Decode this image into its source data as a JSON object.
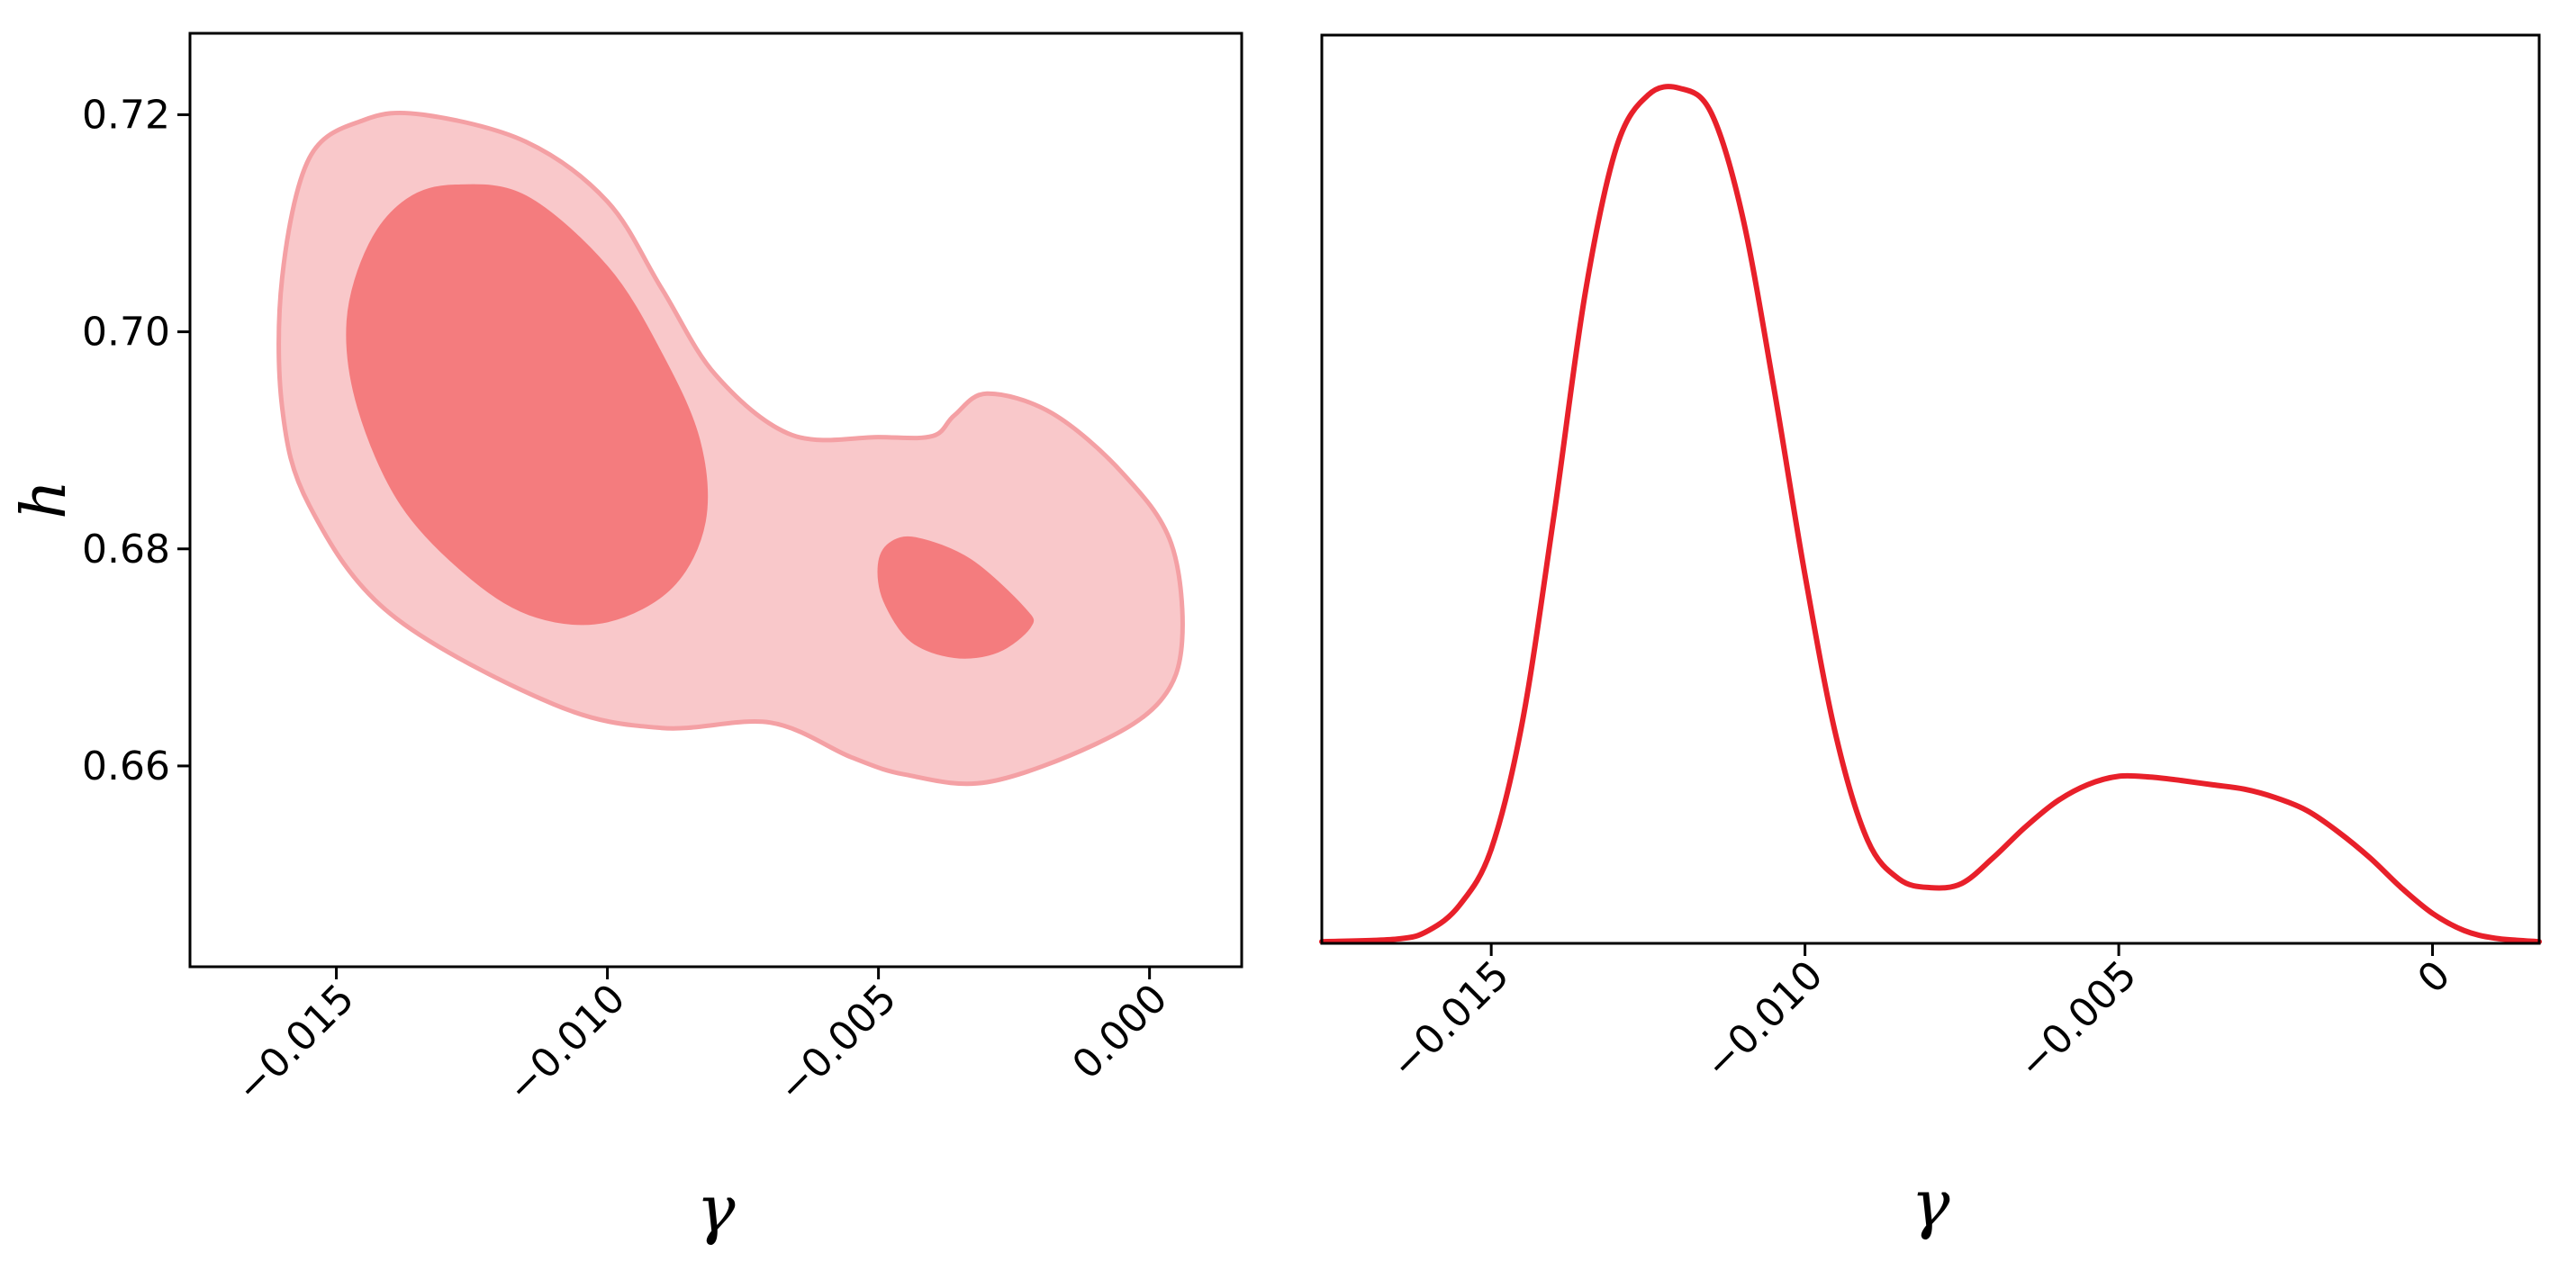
{
  "chart_data": [
    {
      "type": "contour",
      "xlabel": "γ",
      "ylabel": "h",
      "xlim": [
        -0.0177,
        0.0017
      ],
      "ylim": [
        0.6415,
        0.7275
      ],
      "xticks": [
        -0.015,
        -0.01,
        -0.005,
        0.0
      ],
      "xtick_labels": [
        "−0.015",
        "−0.010",
        "−0.005",
        "0.000"
      ],
      "yticks": [
        0.66,
        0.68,
        0.7,
        0.72
      ],
      "ytick_labels": [
        "0.66",
        "0.68",
        "0.70",
        "0.72"
      ],
      "grid": false,
      "colors": {
        "outer_fill": "#f9c8ca",
        "outer_edge": "#f4a0a4",
        "inner_fill": "#f47c7e"
      },
      "contours": [
        {
          "level": "outer",
          "points": [
            [
              -0.0134,
              0.72
            ],
            [
              -0.0115,
              0.7175
            ],
            [
              -0.01,
              0.712
            ],
            [
              -0.009,
              0.704
            ],
            [
              -0.008,
              0.696
            ],
            [
              -0.0066,
              0.6905
            ],
            [
              -0.005,
              0.6903
            ],
            [
              -0.004,
              0.6904
            ],
            [
              -0.0036,
              0.6923
            ],
            [
              -0.003,
              0.6943
            ],
            [
              -0.0018,
              0.6925
            ],
            [
              -0.0005,
              0.687
            ],
            [
              0.0004,
              0.6805
            ],
            [
              0.0006,
              0.6715
            ],
            [
              0.0002,
              0.666
            ],
            [
              -0.001,
              0.662
            ],
            [
              -0.003,
              0.6585
            ],
            [
              -0.0045,
              0.6592
            ],
            [
              -0.0055,
              0.6608
            ],
            [
              -0.007,
              0.664
            ],
            [
              -0.009,
              0.6635
            ],
            [
              -0.011,
              0.6657
            ],
            [
              -0.014,
              0.674
            ],
            [
              -0.0155,
              0.684
            ],
            [
              -0.016,
              0.693
            ],
            [
              -0.016,
              0.705
            ],
            [
              -0.0155,
              0.716
            ],
            [
              -0.0145,
              0.7195
            ]
          ]
        },
        {
          "level": "inner",
          "points": [
            [
              -0.0128,
              0.7135
            ],
            [
              -0.0115,
              0.7125
            ],
            [
              -0.01,
              0.706
            ],
            [
              -0.009,
              0.698
            ],
            [
              -0.0083,
              0.69
            ],
            [
              -0.0082,
              0.6825
            ],
            [
              -0.0088,
              0.6765
            ],
            [
              -0.01,
              0.6733
            ],
            [
              -0.0113,
              0.6737
            ],
            [
              -0.0125,
              0.6772
            ],
            [
              -0.0138,
              0.684
            ],
            [
              -0.0146,
              0.693
            ],
            [
              -0.0148,
              0.701
            ],
            [
              -0.0144,
              0.708
            ],
            [
              -0.0137,
              0.7122
            ]
          ]
        },
        {
          "level": "inner",
          "points": [
            [
              -0.0043,
              0.681
            ],
            [
              -0.0033,
              0.679
            ],
            [
              -0.0023,
              0.6745
            ],
            [
              -0.0022,
              0.6728
            ],
            [
              -0.0028,
              0.6705
            ],
            [
              -0.0036,
              0.67
            ],
            [
              -0.0044,
              0.6715
            ],
            [
              -0.0049,
              0.6752
            ],
            [
              -0.005,
              0.6785
            ],
            [
              -0.0048,
              0.6805
            ]
          ]
        }
      ]
    },
    {
      "type": "line",
      "xlabel": "γ",
      "ylabel": "",
      "xlim": [
        -0.0177,
        0.0017
      ],
      "ylim": [
        0,
        1.06
      ],
      "xticks": [
        -0.015,
        -0.01,
        -0.005,
        0.0
      ],
      "xtick_labels": [
        "−0.015",
        "−0.010",
        "−0.005",
        0.0
      ],
      "grid": false,
      "color": "#e8202a",
      "series": [
        {
          "x": [
            -0.0177,
            -0.0165,
            -0.016,
            -0.0155,
            -0.015,
            -0.0145,
            -0.014,
            -0.0135,
            -0.013,
            -0.0125,
            -0.012,
            -0.0115,
            -0.011,
            -0.0105,
            -0.01,
            -0.0095,
            -0.009,
            -0.0085,
            -0.008,
            -0.0075,
            -0.007,
            -0.0065,
            -0.006,
            -0.0055,
            -0.005,
            -0.0045,
            -0.004,
            -0.0035,
            -0.003,
            -0.0025,
            -0.002,
            -0.0015,
            -0.001,
            -0.0005,
            0.0,
            0.0005,
            0.001,
            0.0017
          ],
          "y": [
            0.002,
            0.005,
            0.015,
            0.045,
            0.11,
            0.26,
            0.5,
            0.76,
            0.93,
            0.99,
            0.998,
            0.97,
            0.85,
            0.65,
            0.43,
            0.24,
            0.12,
            0.075,
            0.065,
            0.07,
            0.1,
            0.135,
            0.165,
            0.185,
            0.195,
            0.194,
            0.19,
            0.185,
            0.18,
            0.17,
            0.155,
            0.13,
            0.1,
            0.065,
            0.035,
            0.015,
            0.006,
            0.002
          ]
        }
      ]
    }
  ]
}
